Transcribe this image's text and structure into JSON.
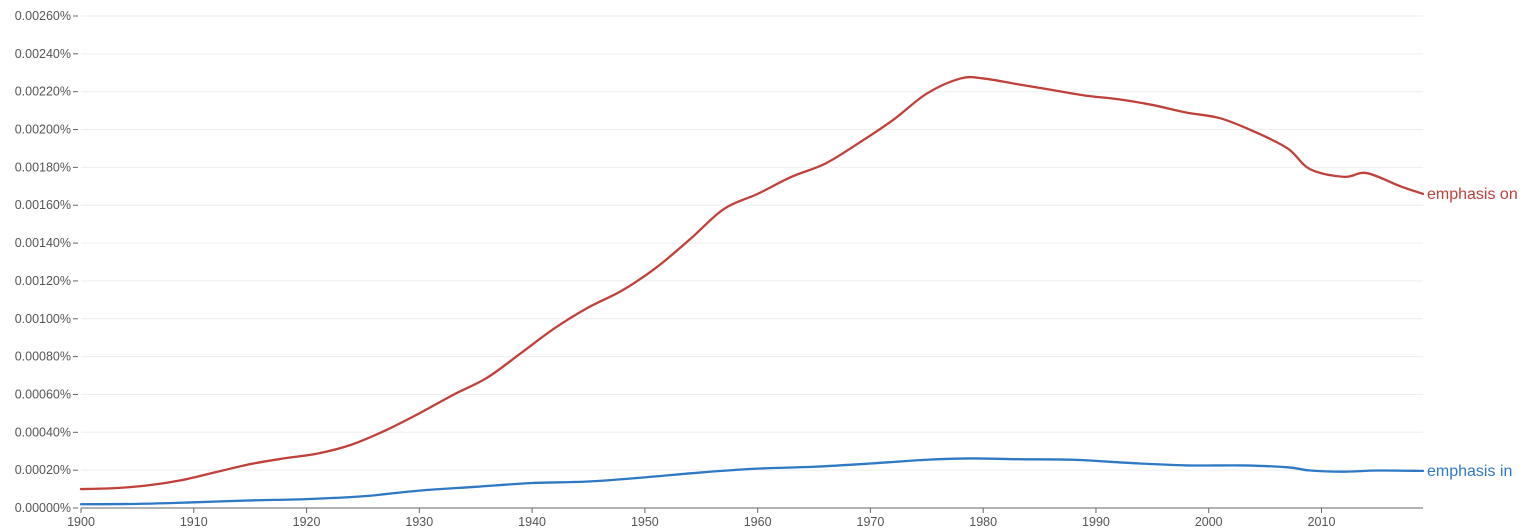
{
  "chart_data": {
    "type": "line",
    "title": "",
    "xlabel": "",
    "ylabel": "",
    "xlim": [
      1900,
      2019
    ],
    "ylim": [
      0,
      0.0026
    ],
    "grid": true,
    "legend": "inline-right",
    "x_ticks": [
      1900,
      1910,
      1920,
      1930,
      1940,
      1950,
      1960,
      1970,
      1980,
      1990,
      2000,
      2010
    ],
    "y_ticks": [
      0,
      0.0002,
      0.0004,
      0.0006,
      0.0008,
      0.001,
      0.0012,
      0.0014,
      0.0016,
      0.0018,
      0.002,
      0.0022,
      0.0024,
      0.0026
    ],
    "y_tick_labels": [
      "0.00000%",
      "0.00020%",
      "0.00040%",
      "0.00060%",
      "0.00080%",
      "0.00100%",
      "0.00120%",
      "0.00140%",
      "0.00160%",
      "0.00180%",
      "0.00200%",
      "0.00220%",
      "0.00240%",
      "0.00260%"
    ],
    "series": [
      {
        "name": "emphasis on",
        "color": "#c0403a",
        "points": [
          [
            1900,
            0.0001
          ],
          [
            1903,
            0.000105
          ],
          [
            1906,
            0.00012
          ],
          [
            1909,
            0.000148
          ],
          [
            1912,
            0.00019
          ],
          [
            1915,
            0.000232
          ],
          [
            1918,
            0.000262
          ],
          [
            1921,
            0.000288
          ],
          [
            1924,
            0.000335
          ],
          [
            1927,
            0.00041
          ],
          [
            1930,
            0.0005
          ],
          [
            1933,
            0.000598
          ],
          [
            1936,
            0.000688
          ],
          [
            1939,
            0.000818
          ],
          [
            1942,
            0.00095
          ],
          [
            1945,
            0.00106
          ],
          [
            1948,
            0.00115
          ],
          [
            1951,
            0.00127
          ],
          [
            1954,
            0.00142
          ],
          [
            1957,
            0.00158
          ],
          [
            1960,
            0.00166
          ],
          [
            1963,
            0.00175
          ],
          [
            1966,
            0.00182
          ],
          [
            1969,
            0.00193
          ],
          [
            1972,
            0.00205
          ],
          [
            1975,
            0.00219
          ],
          [
            1978,
            0.00227
          ],
          [
            1980,
            0.00227
          ],
          [
            1983,
            0.00224
          ],
          [
            1986,
            0.00221
          ],
          [
            1989,
            0.00218
          ],
          [
            1992,
            0.00216
          ],
          [
            1995,
            0.00213
          ],
          [
            1998,
            0.00209
          ],
          [
            2001,
            0.00206
          ],
          [
            2004,
            0.00199
          ],
          [
            2007,
            0.0019
          ],
          [
            2009,
            0.00179
          ],
          [
            2012,
            0.00175
          ],
          [
            2014,
            0.00177
          ],
          [
            2017,
            0.0017
          ],
          [
            2019,
            0.00166
          ]
        ]
      },
      {
        "name": "emphasis in",
        "color": "#2f78c4",
        "points": [
          [
            1900,
            2e-05
          ],
          [
            1905,
            2.2e-05
          ],
          [
            1910,
            3e-05
          ],
          [
            1915,
            4e-05
          ],
          [
            1920,
            4.7e-05
          ],
          [
            1925,
            6.2e-05
          ],
          [
            1930,
            9.2e-05
          ],
          [
            1935,
            0.000112
          ],
          [
            1940,
            0.000132
          ],
          [
            1945,
            0.00014
          ],
          [
            1950,
            0.000162
          ],
          [
            1955,
            0.000188
          ],
          [
            1960,
            0.000208
          ],
          [
            1965,
            0.000218
          ],
          [
            1970,
            0.000235
          ],
          [
            1975,
            0.000255
          ],
          [
            1979,
            0.000262
          ],
          [
            1983,
            0.000258
          ],
          [
            1988,
            0.000255
          ],
          [
            1993,
            0.000238
          ],
          [
            1998,
            0.000225
          ],
          [
            2003,
            0.000225
          ],
          [
            2007,
            0.000215
          ],
          [
            2009,
            0.000198
          ],
          [
            2012,
            0.000192
          ],
          [
            2015,
            0.000198
          ],
          [
            2019,
            0.000196
          ]
        ]
      }
    ]
  }
}
